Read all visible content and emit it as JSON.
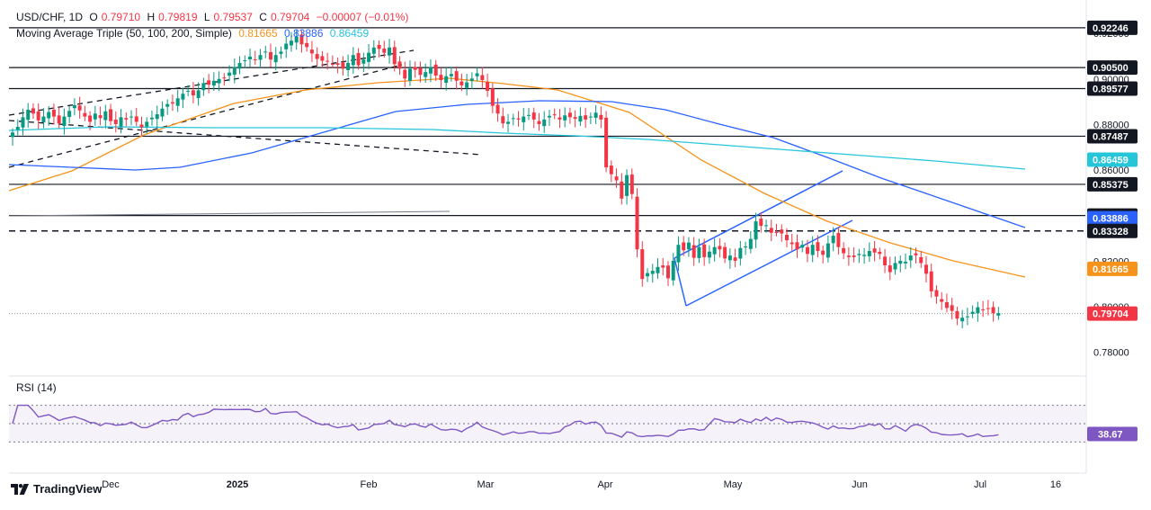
{
  "header": {
    "symbol_line": "USD/CHF, 1D",
    "open_label": "O",
    "open": "0.79710",
    "high_label": "H",
    "high": "0.79819",
    "low_label": "L",
    "low": "0.79537",
    "close_label": "C",
    "close": "0.79704",
    "change": "−0.00007 (−0.01%)",
    "ma_title": "Moving Average Triple (50, 100, 200, Simple)",
    "ma50": "0.81665",
    "ma100": "0.83886",
    "ma200": "0.86459"
  },
  "rsi": {
    "label": "RSI (14)",
    "value": "38.67",
    "levels": [
      70,
      50,
      30
    ]
  },
  "brand": {
    "name": "TradingView"
  },
  "colors": {
    "up": "#089981",
    "down": "#f23645",
    "ma50": "#f7931a",
    "ma100": "#2962ff",
    "ma200": "#26c6da",
    "channel": "#2962ff",
    "rsi": "#7e57c2"
  },
  "chart_data": {
    "type": "candlestick",
    "title": "USD/CHF, 1D",
    "x_ticks": [
      "Dec",
      "2025",
      "Feb",
      "Mar",
      "Apr",
      "May",
      "Jun",
      "Jul",
      "16"
    ],
    "y_ticks": [
      "0.78000",
      "0.80000",
      "0.82000",
      "0.84000",
      "0.86000",
      "0.88000",
      "0.90000",
      "0.92000"
    ],
    "y_range": [
      0.772,
      0.9315
    ],
    "price_labels": [
      {
        "value": "0.92246",
        "kind": "level"
      },
      {
        "value": "0.90500",
        "kind": "level"
      },
      {
        "value": "0.89577",
        "kind": "level"
      },
      {
        "value": "0.87487",
        "kind": "level"
      },
      {
        "value": "0.86459",
        "kind": "ma200"
      },
      {
        "value": "0.85375",
        "kind": "level"
      },
      {
        "value": "0.84005",
        "kind": "level"
      },
      {
        "value": "0.83886",
        "kind": "ma100"
      },
      {
        "value": "0.83328",
        "kind": "level"
      },
      {
        "value": "0.81665",
        "kind": "ma50"
      },
      {
        "value": "0.79704",
        "kind": "last"
      }
    ],
    "horizontal_levels": [
      {
        "value": 0.92246,
        "style": "solid"
      },
      {
        "value": 0.905,
        "style": "solid"
      },
      {
        "value": 0.89577,
        "style": "solid"
      },
      {
        "value": 0.87487,
        "style": "solid"
      },
      {
        "value": 0.85375,
        "style": "solid"
      },
      {
        "value": 0.84005,
        "style": "solid"
      },
      {
        "value": 0.83328,
        "style": "dashed"
      }
    ],
    "close_series": [
      0.8765,
      0.879,
      0.8832,
      0.8865,
      0.8848,
      0.8818,
      0.8835,
      0.8855,
      0.8835,
      0.8805,
      0.8835,
      0.886,
      0.8885,
      0.8862,
      0.8835,
      0.8812,
      0.8848,
      0.8828,
      0.8858,
      0.8815,
      0.8802,
      0.8832,
      0.8822,
      0.8835,
      0.8812,
      0.8788,
      0.8812,
      0.883,
      0.8845,
      0.887,
      0.889,
      0.8892,
      0.8915,
      0.8935,
      0.8948,
      0.8928,
      0.895,
      0.8982,
      0.8975,
      0.8992,
      0.9,
      0.9005,
      0.9028,
      0.9052,
      0.907,
      0.9082,
      0.9098,
      0.9085,
      0.9105,
      0.912,
      0.9085,
      0.9105,
      0.912,
      0.9155,
      0.9168,
      0.9185,
      0.9152,
      0.914,
      0.9112,
      0.9088,
      0.908,
      0.9078,
      0.9065,
      0.9062,
      0.9045,
      0.907,
      0.9105,
      0.906,
      0.9085,
      0.9115,
      0.9138,
      0.9132,
      0.9115,
      0.9138,
      0.9065,
      0.9045,
      0.9002,
      0.9045,
      0.904,
      0.9018,
      0.903,
      0.9052,
      0.9015,
      0.8995,
      0.9012,
      0.9022,
      0.8992,
      0.8972,
      0.8985,
      0.9002,
      0.9025,
      0.8995,
      0.8948,
      0.8882,
      0.8848,
      0.8805,
      0.8812,
      0.8828,
      0.8822,
      0.8835,
      0.8842,
      0.8822,
      0.8802,
      0.8822,
      0.8838,
      0.8842,
      0.8822,
      0.884,
      0.8832,
      0.8825,
      0.8838,
      0.8822,
      0.8835,
      0.8852,
      0.8822,
      0.8612,
      0.8582,
      0.8555,
      0.8475,
      0.8578,
      0.8495,
      0.8252,
      0.8122,
      0.8148,
      0.8158,
      0.8175,
      0.8172,
      0.8125,
      0.8202,
      0.8272,
      0.8248,
      0.8282,
      0.8215,
      0.8262,
      0.8218,
      0.8242,
      0.8262,
      0.8252,
      0.8212,
      0.8225,
      0.8202,
      0.8258,
      0.8265,
      0.8298,
      0.8375,
      0.8355,
      0.8358,
      0.8325,
      0.8328,
      0.8322,
      0.8292,
      0.8275,
      0.8252,
      0.8272,
      0.8232,
      0.8272,
      0.8245,
      0.8228,
      0.8278,
      0.8312,
      0.8262,
      0.8235,
      0.8218,
      0.8218,
      0.8232,
      0.8228,
      0.8245,
      0.8238,
      0.8232,
      0.8182,
      0.8152,
      0.8192,
      0.8202,
      0.8198,
      0.8225,
      0.8226,
      0.8192,
      0.8145,
      0.8068,
      0.8045,
      0.8022,
      0.7995,
      0.7982,
      0.7948,
      0.7952,
      0.7958,
      0.7978,
      0.7998,
      0.7985,
      0.7992,
      0.7972,
      0.7972
    ]
  }
}
